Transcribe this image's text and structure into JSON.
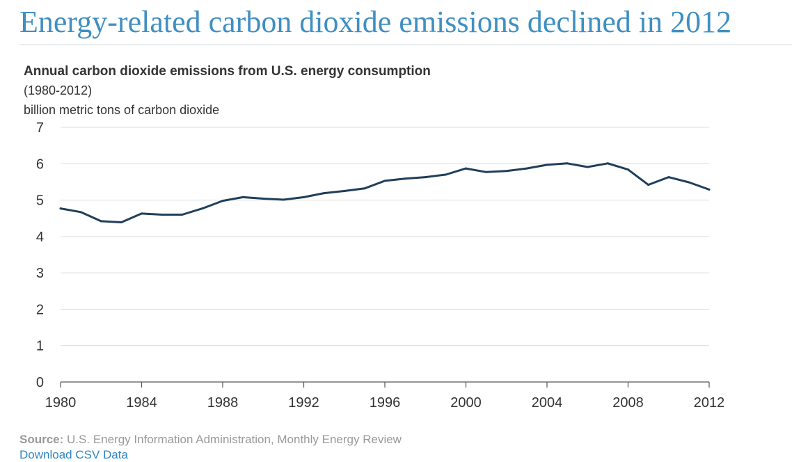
{
  "headline": "Energy-related carbon dioxide emissions declined in 2012",
  "chart_data": {
    "type": "line",
    "title": "Annual carbon dioxide emissions from U.S. energy consumption",
    "subtitle": "(1980-2012)",
    "ylabel": "billion metric tons of carbon dioxide",
    "xlabel": "",
    "xlim": [
      1980,
      2012
    ],
    "ylim": [
      0,
      7
    ],
    "grid": true,
    "x_ticks": [
      "1980",
      "1984",
      "1988",
      "1992",
      "1996",
      "2000",
      "2004",
      "2008",
      "2012"
    ],
    "y_ticks": [
      "0",
      "1",
      "2",
      "3",
      "4",
      "5",
      "6",
      "7"
    ],
    "line_color": "#1f3f5b",
    "x": [
      1980,
      1981,
      1982,
      1983,
      1984,
      1985,
      1986,
      1987,
      1988,
      1989,
      1990,
      1991,
      1992,
      1993,
      1994,
      1995,
      1996,
      1997,
      1998,
      1999,
      2000,
      2001,
      2002,
      2003,
      2004,
      2005,
      2006,
      2007,
      2008,
      2009,
      2010,
      2011,
      2012
    ],
    "series": [
      {
        "values": [
          4.77,
          4.67,
          4.42,
          4.39,
          4.63,
          4.6,
          4.6,
          4.77,
          4.98,
          5.08,
          5.04,
          5.01,
          5.08,
          5.19,
          5.25,
          5.32,
          5.53,
          5.59,
          5.63,
          5.7,
          5.87,
          5.77,
          5.8,
          5.87,
          5.97,
          6.01,
          5.91,
          6.01,
          5.84,
          5.42,
          5.63,
          5.49,
          5.29
        ]
      }
    ]
  },
  "footer": {
    "source_label": "Source:",
    "source_text": "U.S. Energy Information Administration, Monthly Energy Review",
    "download_label": "Download CSV Data"
  }
}
